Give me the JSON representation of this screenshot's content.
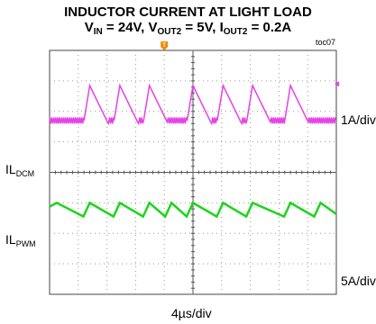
{
  "title": {
    "line1": "INDUCTOR CURRENT AT LIGHT LOAD",
    "vin_label": "V",
    "vin_sub": "IN",
    "vin_val": " = 24V, ",
    "vout_label": "V",
    "vout_sub": "OUT2",
    "vout_val": " = 5V, ",
    "iout_label": "I",
    "iout_sub": "OUT2",
    "iout_val": " = 0.2A"
  },
  "tag": "toc07",
  "trigger_marker": "T",
  "chart_data": {
    "type": "line",
    "divisions": {
      "x": 10,
      "y": 8
    },
    "xlabel": "4µs/div",
    "series": [
      {
        "name": "IL",
        "name_sub": "DCM",
        "scale": "1A/div",
        "color": "#e642e6",
        "peak_times_div": [
          1.4,
          2.45,
          3.48,
          5.0,
          6.05,
          7.08,
          8.4
        ],
        "pulse_width_div": 0.2,
        "decay_width_div": 0.62,
        "baseline_div": 5.7,
        "peak_div": 6.85,
        "ripple_div": 0.1
      },
      {
        "name": "IL",
        "name_sub": "PWM",
        "scale": "5A/div",
        "color": "#19d619",
        "peak_times_div": [
          0.25,
          1.4,
          2.45,
          3.48,
          4.25,
          5.0,
          6.05,
          7.08,
          8.4,
          9.45
        ],
        "low_div": 2.55,
        "high_div": 3.0
      }
    ]
  }
}
